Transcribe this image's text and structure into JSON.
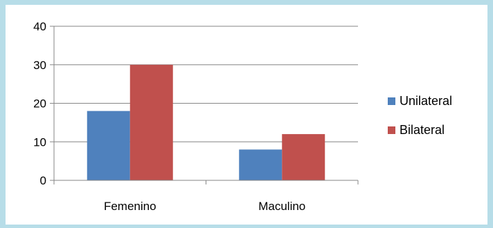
{
  "chart_data": {
    "type": "bar",
    "title": "",
    "xlabel": "",
    "ylabel": "",
    "categories": [
      "Femenino",
      "Maculino"
    ],
    "series": [
      {
        "name": "Unilateral",
        "values": [
          18,
          8
        ],
        "color": "#4f81bd"
      },
      {
        "name": "Bilateral",
        "values": [
          30,
          12
        ],
        "color": "#c0504d"
      }
    ],
    "ylim": [
      0,
      40
    ],
    "yticks": [
      0,
      10,
      20,
      30,
      40
    ],
    "grid": true,
    "legend_position": "right"
  }
}
